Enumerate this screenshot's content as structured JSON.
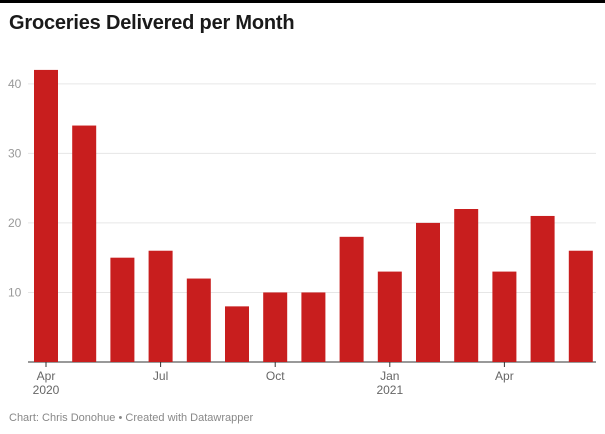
{
  "title": "Groceries Delivered per Month",
  "footer": {
    "chart_credit": "Chart: Chris Donohue",
    "separator": "•",
    "made_with": "Created with Datawrapper"
  },
  "colors": {
    "bar": "#c81e1e",
    "grid": "#e6e6e6",
    "axis": "#333333"
  },
  "chart_data": {
    "type": "bar",
    "categories": [
      "Apr 2020",
      "May 2020",
      "Jun 2020",
      "Jul 2020",
      "Aug 2020",
      "Sep 2020",
      "Oct 2020",
      "Nov 2020",
      "Dec 2020",
      "Jan 2021",
      "Feb 2021",
      "Mar 2021",
      "Apr 2021",
      "May 2021",
      "Jun 2021"
    ],
    "values": [
      42,
      34,
      15,
      16,
      12,
      8,
      10,
      10,
      18,
      13,
      20,
      22,
      13,
      21,
      16
    ],
    "title": "Groceries Delivered per Month",
    "xlabel": "",
    "ylabel": "",
    "ylim": [
      0,
      44
    ],
    "yticks": [
      10,
      20,
      30,
      40
    ],
    "xticks": [
      {
        "index": 0,
        "label": "Apr",
        "sublabel": "2020"
      },
      {
        "index": 3,
        "label": "Jul",
        "sublabel": ""
      },
      {
        "index": 6,
        "label": "Oct",
        "sublabel": ""
      },
      {
        "index": 9,
        "label": "Jan",
        "sublabel": "2021"
      },
      {
        "index": 12,
        "label": "Apr",
        "sublabel": ""
      }
    ],
    "grid": true,
    "legend": "none"
  }
}
